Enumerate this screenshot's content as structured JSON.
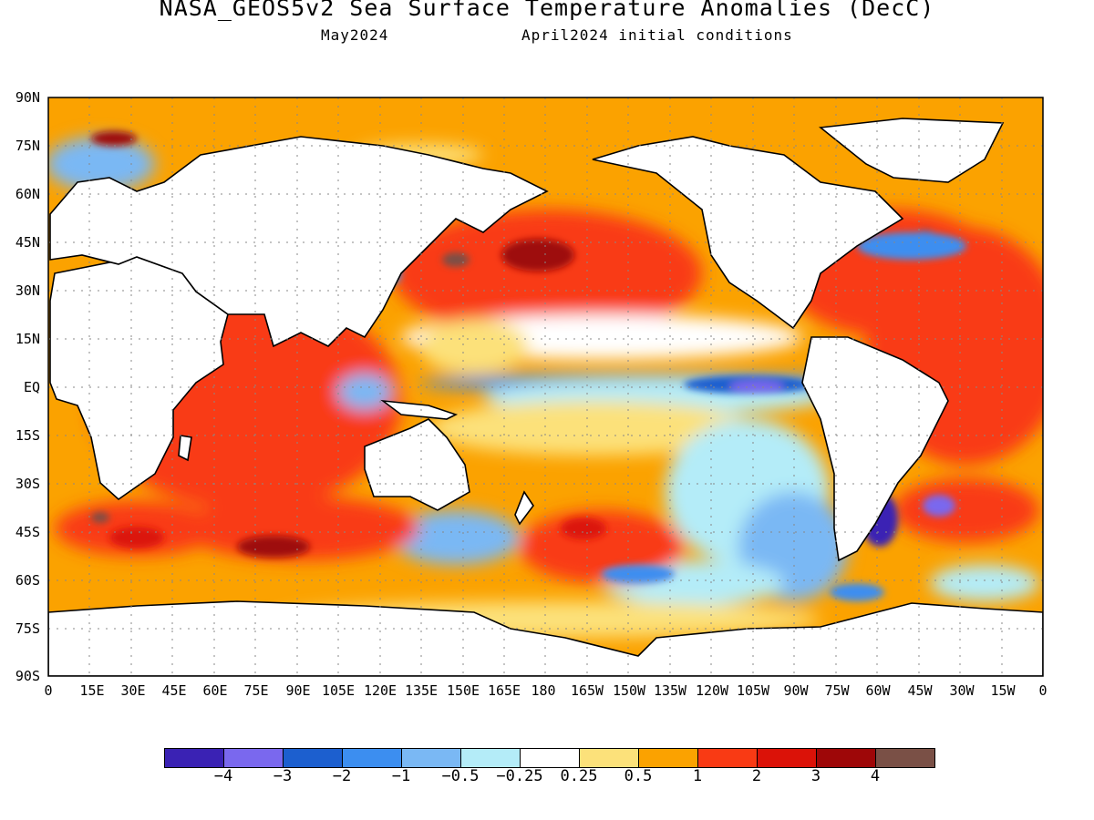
{
  "title": "NASA_GEOS5v2 Sea Surface Temperature Anomalies (DecC)",
  "subtitle_left": "May2024",
  "subtitle_right": "April2024 initial conditions",
  "y_axis_labels": [
    "90N",
    "75N",
    "60N",
    "45N",
    "30N",
    "15N",
    "EQ",
    "15S",
    "30S",
    "45S",
    "60S",
    "75S",
    "90S"
  ],
  "x_axis_labels": [
    "0",
    "15E",
    "30E",
    "45E",
    "60E",
    "75E",
    "90E",
    "105E",
    "120E",
    "135E",
    "150E",
    "165E",
    "180",
    "165W",
    "150W",
    "135W",
    "120W",
    "105W",
    "90W",
    "75W",
    "60W",
    "45W",
    "30W",
    "15W",
    "0"
  ],
  "colorbar": {
    "colors": [
      "#3a22b4",
      "#7a68ee",
      "#1c5fcf",
      "#3c8ef0",
      "#7ab8f4",
      "#b4ecf8",
      "#ffffff",
      "#fce17a",
      "#fba200",
      "#f93a14",
      "#db1208",
      "#9e0708",
      "#7a5046"
    ],
    "labels": [
      "−4",
      "−3",
      "−2",
      "−1",
      "−0.5",
      "−0.25",
      "0.25",
      "0.5",
      "1",
      "2",
      "3",
      "4"
    ]
  },
  "map": {
    "projection": "equirectangular",
    "lon_range": [
      0,
      360
    ],
    "lat_range": [
      -90,
      90
    ],
    "grid": true,
    "land_color": "#ffffff"
  }
}
